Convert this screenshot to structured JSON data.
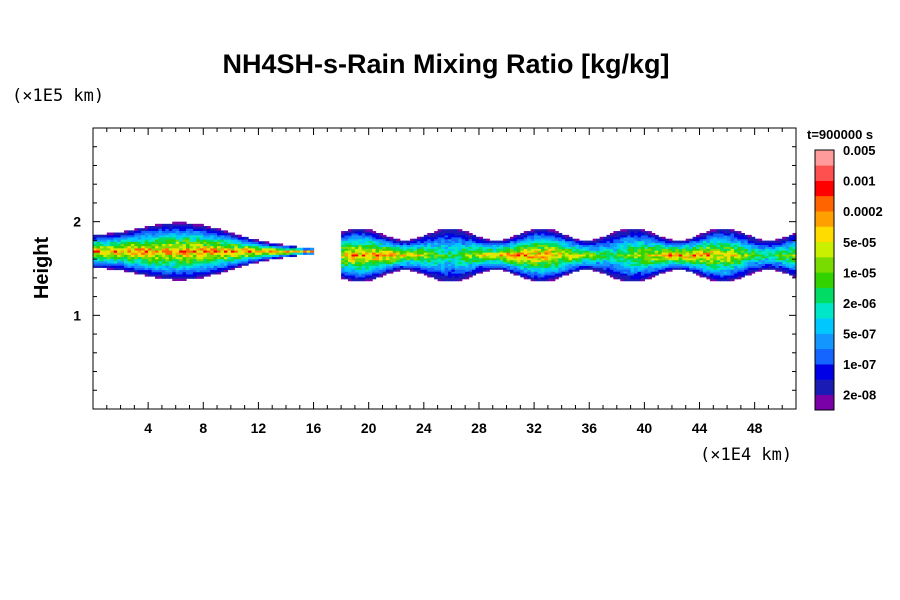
{
  "chart_data": {
    "type": "heatmap",
    "title": "NH4SH-s-Rain Mixing Ratio [kg/kg]",
    "ylabel": "Height",
    "y_unit": "(×1E5 km)",
    "x_unit": "(×1E4 km)",
    "time_label": "t=900000 s",
    "xlim": [
      0,
      51
    ],
    "ylim": [
      0,
      3
    ],
    "x_ticks": [
      4,
      8,
      12,
      16,
      20,
      24,
      28,
      32,
      36,
      40,
      44,
      48
    ],
    "y_ticks": [
      1,
      2
    ],
    "colorbar": {
      "colors": [
        "#7a00a8",
        "#1a1ab4",
        "#0000e6",
        "#1464ff",
        "#1496ff",
        "#00c8ff",
        "#00e6c8",
        "#00dc64",
        "#32d200",
        "#78dc00",
        "#c8f000",
        "#ffdc00",
        "#ffa000",
        "#ff6400",
        "#ff0000",
        "#ff5050",
        "#ff9b9b"
      ],
      "tick_labels": [
        "2e-08",
        "1e-07",
        "5e-07",
        "2e-06",
        "1e-05",
        "5e-05",
        "0.0002",
        "0.001",
        "0.005"
      ]
    },
    "regions": [
      {
        "x": [
          0,
          16
        ],
        "y": [
          1.35,
          2.0
        ],
        "max_level": 13
      },
      {
        "x": [
          18,
          51
        ],
        "y": [
          1.35,
          1.92
        ],
        "max_level": 13
      }
    ]
  }
}
